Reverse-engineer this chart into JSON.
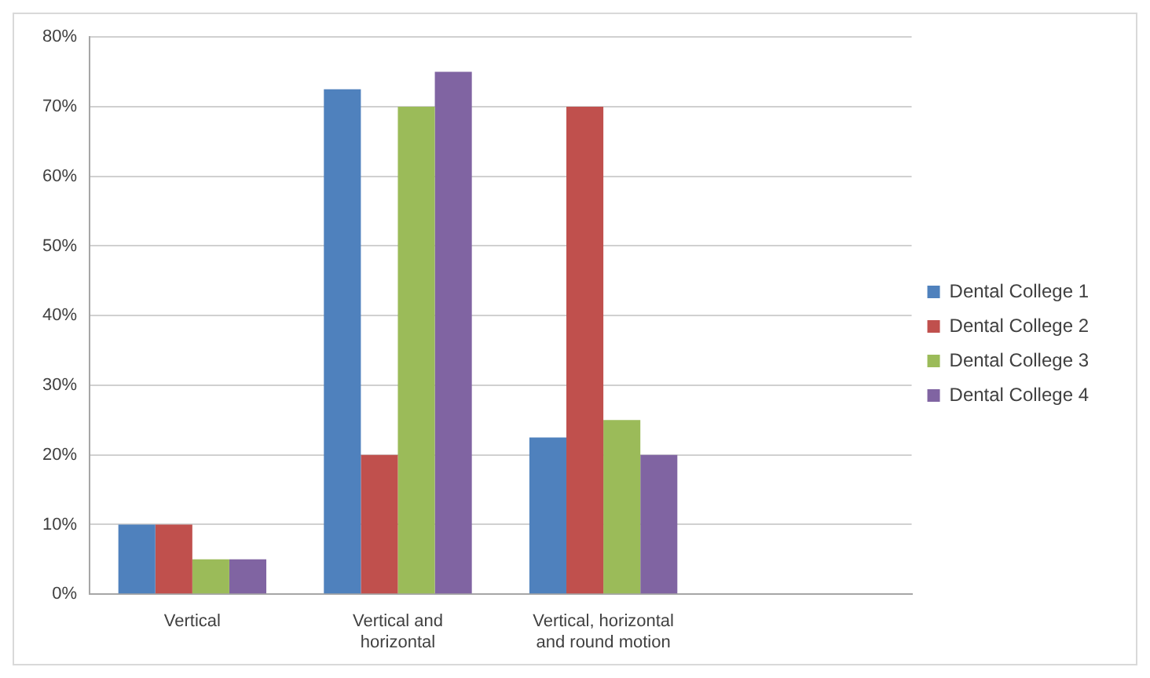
{
  "chart_data": {
    "type": "bar",
    "categories": [
      "Vertical",
      "Vertical and horizontal",
      "Vertical, horizontal and round motion",
      null
    ],
    "series": [
      {
        "name": "Dental College 1",
        "color": "#4f81bd",
        "values": [
          10,
          72.5,
          22.5,
          null
        ]
      },
      {
        "name": "Dental College 2",
        "color": "#c0504d",
        "values": [
          10,
          20,
          70,
          null
        ]
      },
      {
        "name": "Dental College 3",
        "color": "#9bbb59",
        "values": [
          5,
          70,
          25,
          null
        ]
      },
      {
        "name": "Dental College 4",
        "color": "#8064a2",
        "values": [
          5,
          75,
          20,
          null
        ]
      }
    ],
    "ylim": [
      0,
      80
    ],
    "yticks": [
      {
        "value": 0,
        "label": "0%"
      },
      {
        "value": 10,
        "label": "10%"
      },
      {
        "value": 20,
        "label": "20%"
      },
      {
        "value": 30,
        "label": "30%"
      },
      {
        "value": 40,
        "label": "40%"
      },
      {
        "value": 50,
        "label": "50%"
      },
      {
        "value": 60,
        "label": "60%"
      },
      {
        "value": 70,
        "label": "70%"
      },
      {
        "value": 80,
        "label": "80%"
      }
    ],
    "grid": "y",
    "legend": "right"
  }
}
